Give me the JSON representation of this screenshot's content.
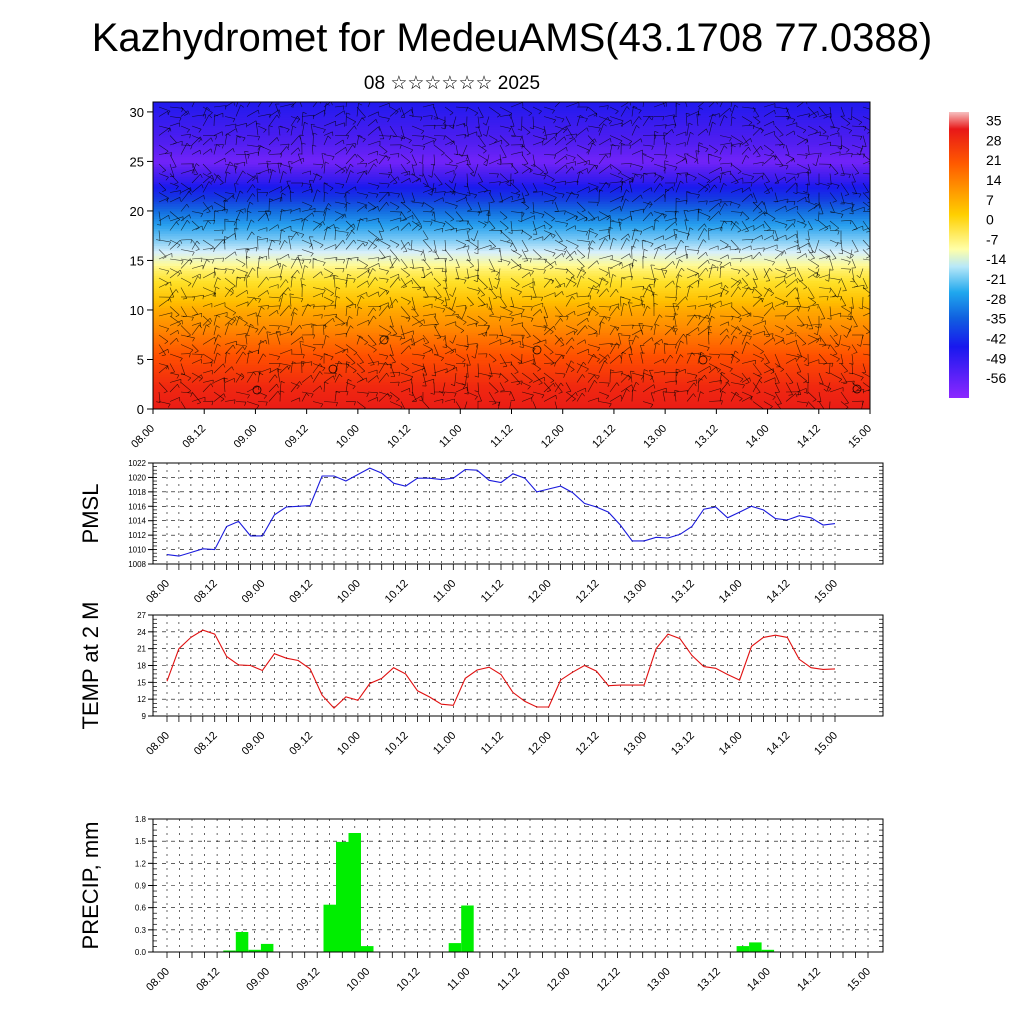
{
  "header": {
    "title": "Kazhydromet for MedeuAMS(43.1708 77.0388)",
    "subtitle": "08 ☆☆☆☆☆☆ 2025"
  },
  "colors": {
    "pmsl_line": "#1a1adc",
    "temp_line": "#e01010",
    "precip_bar": "#00ee00",
    "grid": "#000000"
  },
  "chart_data": [
    {
      "type": "heatmap",
      "name": "upper-air-cross-section",
      "xlabel": "",
      "ylabel": "",
      "x_ticks": [
        "08.00",
        "08.12",
        "09.00",
        "09.12",
        "10.00",
        "10.12",
        "11.00",
        "11.12",
        "12.00",
        "12.12",
        "13.00",
        "13.12",
        "14.00",
        "14.12",
        "15.00"
      ],
      "y_ticks": [
        0,
        5,
        10,
        15,
        20,
        25,
        30
      ],
      "ylim": [
        0,
        31
      ],
      "colorbar": {
        "labels": [
          35,
          28,
          21,
          14,
          7,
          0,
          -7,
          -14,
          -21,
          -28,
          -35,
          -42,
          -49,
          -56
        ],
        "range": [
          -63,
          38
        ]
      },
      "temperature_profile": [
        {
          "level": 0,
          "value": 33
        },
        {
          "level": 5,
          "value": 22
        },
        {
          "level": 10,
          "value": 10
        },
        {
          "level": 14,
          "value": -4
        },
        {
          "level": 17,
          "value": -20
        },
        {
          "level": 20,
          "value": -35
        },
        {
          "level": 23,
          "value": -52
        },
        {
          "level": 25,
          "value": -60
        },
        {
          "level": 27,
          "value": -56
        },
        {
          "level": 31,
          "value": -50
        }
      ],
      "overlay": "wind barbs"
    },
    {
      "type": "line",
      "name": "pmsl",
      "ylabel": "PMSL",
      "ylim": [
        1008,
        1022
      ],
      "y_ticks": [
        1008,
        1010,
        1012,
        1014,
        1016,
        1018,
        1020,
        1022
      ],
      "x_ticks": [
        "08.00",
        "08.12",
        "09.00",
        "09.12",
        "10.00",
        "10.12",
        "11.00",
        "11.12",
        "12.00",
        "12.12",
        "13.00",
        "13.12",
        "14.00",
        "14.12",
        "15.00"
      ],
      "x_step_hours": 3,
      "values": [
        1009.3,
        1009.1,
        1009.6,
        1010.1,
        1010.0,
        1013.2,
        1013.9,
        1011.9,
        1011.9,
        1014.8,
        1015.9,
        1016.0,
        1016.1,
        1020.2,
        1020.2,
        1019.5,
        1020.4,
        1021.3,
        1020.6,
        1019.2,
        1018.8,
        1019.9,
        1019.9,
        1019.7,
        1019.9,
        1021.1,
        1021.0,
        1019.6,
        1019.3,
        1020.5,
        1019.9,
        1018.0,
        1018.4,
        1018.8,
        1017.9,
        1016.4,
        1015.9,
        1015.2,
        1013.4,
        1011.2,
        1011.2,
        1011.7,
        1011.6,
        1012.1,
        1013.2,
        1015.6,
        1015.9,
        1014.4,
        1015.2,
        1016.0,
        1015.5,
        1014.3,
        1014.1,
        1014.7,
        1014.4,
        1013.4,
        1013.6
      ]
    },
    {
      "type": "line",
      "name": "temp-2m",
      "ylabel": "TEMP at 2 M",
      "ylim": [
        9,
        27
      ],
      "y_ticks": [
        9,
        12,
        15,
        18,
        21,
        24,
        27
      ],
      "x_ticks": [
        "08.00",
        "08.12",
        "09.00",
        "09.12",
        "10.00",
        "10.12",
        "11.00",
        "11.12",
        "12.00",
        "12.12",
        "13.00",
        "13.12",
        "14.00",
        "14.12",
        "15.00"
      ],
      "x_step_hours": 3,
      "values": [
        15.2,
        21.0,
        23.0,
        24.3,
        23.6,
        19.6,
        18.1,
        18.0,
        17.1,
        20.1,
        19.3,
        18.9,
        17.4,
        12.7,
        10.4,
        12.4,
        11.8,
        14.8,
        15.7,
        17.6,
        16.5,
        13.5,
        12.4,
        11.1,
        10.9,
        15.7,
        17.2,
        17.7,
        16.4,
        13.2,
        11.6,
        10.6,
        10.6,
        15.4,
        16.8,
        18.0,
        17.0,
        14.4,
        14.5,
        14.5,
        14.5,
        21.0,
        23.6,
        22.8,
        19.8,
        17.8,
        17.5,
        16.4,
        15.4,
        21.4,
        23.0,
        23.4,
        23.0,
        19.1,
        17.6,
        17.3,
        17.4
      ]
    },
    {
      "type": "bar",
      "name": "precip",
      "ylabel": "PRECIP, mm",
      "ylim": [
        0,
        1.8
      ],
      "y_ticks": [
        "0.0",
        "0.3",
        "0.6",
        "0.9",
        "1.2",
        "1.5",
        "1.8"
      ],
      "x_ticks": [
        "08.00",
        "08.12",
        "09.00",
        "09.12",
        "10.00",
        "10.12",
        "11.00",
        "11.12",
        "12.00",
        "12.12",
        "13.00",
        "13.12",
        "14.00",
        "14.12",
        "15.00"
      ],
      "x_step_hours": 3,
      "values": [
        0,
        0,
        0,
        0,
        0,
        0.02,
        0.27,
        0.03,
        0.11,
        0,
        0,
        0,
        0,
        0.64,
        1.49,
        1.61,
        0.08,
        0,
        0,
        0,
        0,
        0,
        0,
        0.12,
        0.63,
        0,
        0,
        0,
        0,
        0,
        0,
        0,
        0,
        0,
        0,
        0,
        0,
        0,
        0,
        0,
        0,
        0,
        0,
        0,
        0,
        0,
        0.08,
        0.13,
        0.03,
        0,
        0,
        0,
        0,
        0,
        0,
        0,
        0
      ]
    }
  ]
}
